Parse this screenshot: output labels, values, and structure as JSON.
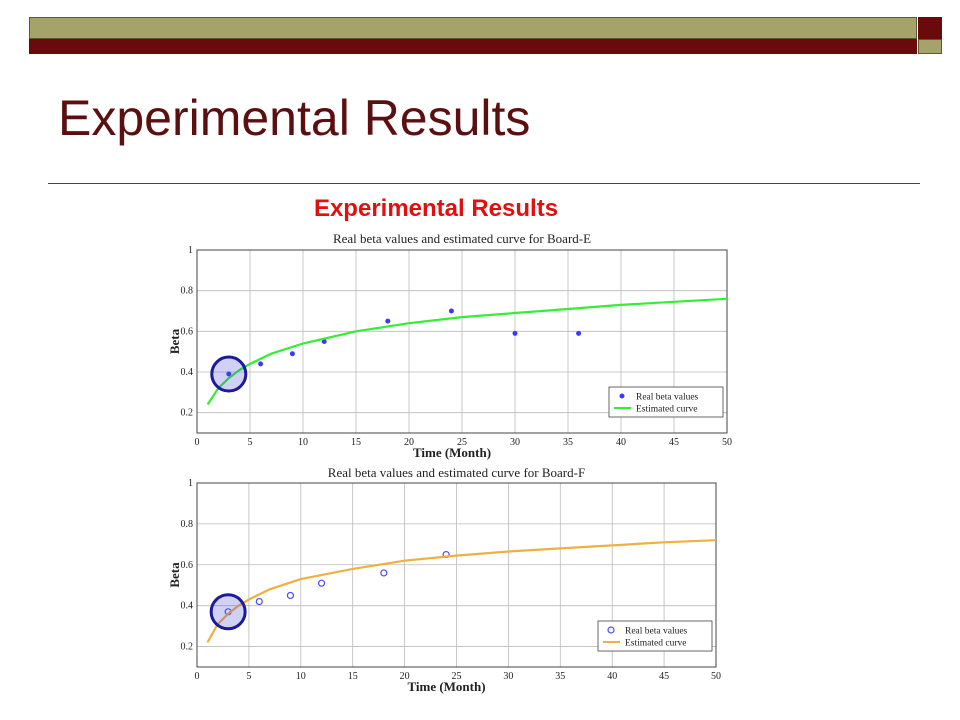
{
  "slide": {
    "title": "Experimental Results",
    "subtitle": "Experimental Results"
  },
  "colors": {
    "bar_olive": "#a3a36a",
    "bar_maroon": "#6b0a0a",
    "title": "#5a1010",
    "subtitle": "#e01010",
    "highlight_circle": "#1a1a9a"
  },
  "chart_data": [
    {
      "type": "scatter",
      "title": "Real beta values and estimated curve for Board-E",
      "xlabel": "Time (Month)",
      "ylabel": "Beta",
      "xlim": [
        0,
        50
      ],
      "ylim": [
        0.1,
        1
      ],
      "xticks": [
        0,
        5,
        10,
        15,
        20,
        25,
        30,
        35,
        40,
        45,
        50
      ],
      "yticks": [
        0.2,
        0.4,
        0.6,
        0.8,
        1
      ],
      "ytick_labels": [
        "0.2",
        "0.4",
        "0.6",
        "0.8",
        "1"
      ],
      "grid": true,
      "legend_position": "bottom-right",
      "series": [
        {
          "name": "Real beta values",
          "kind": "points",
          "marker": "*",
          "color": "#3a3aff",
          "x": [
            3,
            6,
            9,
            12,
            18,
            24,
            30,
            36
          ],
          "y": [
            0.39,
            0.44,
            0.49,
            0.55,
            0.65,
            0.7,
            0.59,
            0.59
          ]
        },
        {
          "name": "Estimated curve",
          "kind": "curve",
          "color": "#33ee33",
          "x": [
            1,
            2,
            3,
            4,
            5,
            7,
            10,
            15,
            20,
            25,
            30,
            35,
            40,
            45,
            50
          ],
          "y": [
            0.24,
            0.32,
            0.37,
            0.41,
            0.44,
            0.49,
            0.54,
            0.6,
            0.64,
            0.67,
            0.69,
            0.71,
            0.73,
            0.745,
            0.76
          ]
        }
      ],
      "highlight": {
        "x": 3,
        "y": 0.39
      }
    },
    {
      "type": "scatter",
      "title": "Real beta values and estimated curve for Board-F",
      "xlabel": "Time (Month)",
      "ylabel": "Beta",
      "xlim": [
        0,
        50
      ],
      "ylim": [
        0.1,
        1
      ],
      "xticks": [
        0,
        5,
        10,
        15,
        20,
        25,
        30,
        35,
        40,
        45,
        50
      ],
      "yticks": [
        0.2,
        0.4,
        0.6,
        0.8,
        1
      ],
      "ytick_labels": [
        "0.2",
        "0.4",
        "0.6",
        "0.8",
        "1"
      ],
      "grid": true,
      "legend_position": "bottom-right",
      "series": [
        {
          "name": "Real beta values",
          "kind": "points",
          "marker": "o",
          "color": "#4a4aff",
          "x": [
            3,
            6,
            9,
            12,
            18,
            24
          ],
          "y": [
            0.37,
            0.42,
            0.45,
            0.51,
            0.56,
            0.65
          ]
        },
        {
          "name": "Estimated curve",
          "kind": "curve",
          "color": "#f0b040",
          "x": [
            1,
            2,
            3,
            4,
            5,
            7,
            10,
            15,
            20,
            25,
            30,
            35,
            40,
            45,
            50
          ],
          "y": [
            0.22,
            0.31,
            0.36,
            0.4,
            0.43,
            0.48,
            0.53,
            0.58,
            0.62,
            0.645,
            0.665,
            0.68,
            0.695,
            0.71,
            0.72
          ]
        }
      ],
      "highlight": {
        "x": 3,
        "y": 0.37
      }
    }
  ]
}
